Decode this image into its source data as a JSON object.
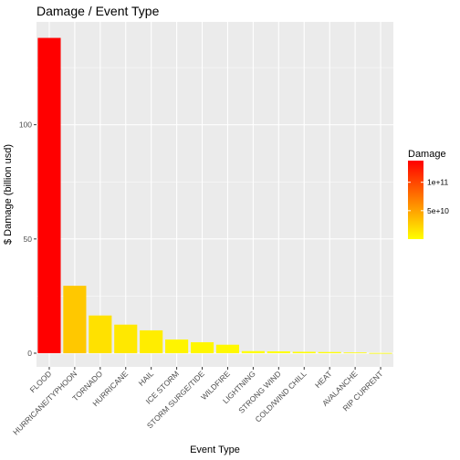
{
  "chart_data": {
    "type": "bar",
    "title": "Damage / Event Type",
    "xlabel": "Event Type",
    "ylabel": "$ Damage (billion usd)",
    "categories": [
      "FLOOD",
      "HURRICANE/TYPHOON",
      "TORNADO",
      "HURRICANE",
      "HAIL",
      "ICE STORM",
      "STORM SURGE/TIDE",
      "WILDFIRE",
      "LIGHTNING",
      "STRONG WIND",
      "COLD/WIND CHILL",
      "HEAT",
      "AVALANCHE",
      "RIP CURRENT"
    ],
    "values": [
      138,
      29.5,
      16.5,
      12.5,
      10,
      6,
      4.8,
      3.7,
      0.9,
      0.8,
      0.6,
      0.5,
      0.3,
      0.1
    ],
    "ylim": [
      -6,
      145
    ],
    "yticks": [
      0,
      50,
      100
    ],
    "ytick_labels": [
      "0",
      "50",
      "100"
    ],
    "grid": true,
    "legend": {
      "title": "Damage",
      "placement": "right",
      "scale_min": 0,
      "scale_max": 138000000000,
      "breaks": [
        100000000000,
        50000000000
      ],
      "break_labels": [
        "1e+11",
        "5e+10"
      ],
      "low_color": "#ffff00",
      "high_color": "#ff0000"
    },
    "panel_bg": "#ebebeb",
    "grid_color": "#ffffff"
  }
}
